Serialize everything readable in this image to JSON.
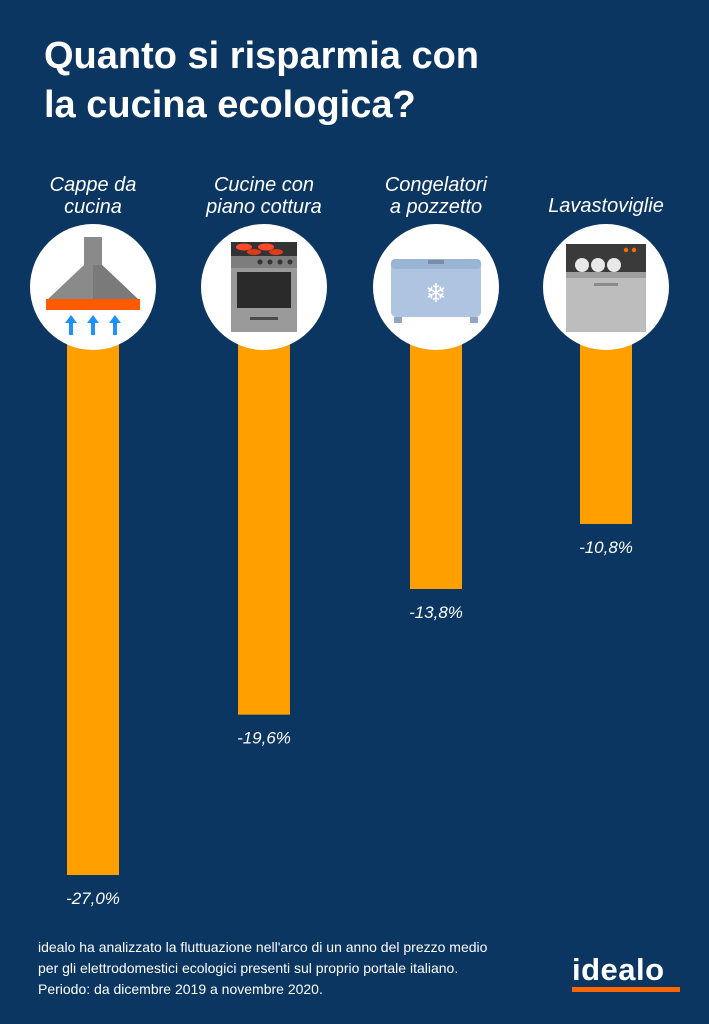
{
  "title_lines": [
    "Quanto si risparmia con",
    "la cucina ecologica?"
  ],
  "colors": {
    "background": "#0b3661",
    "bar": "#ffa000",
    "text": "#ffffff",
    "icon_circle": "#ffffff",
    "brand_accent": "#ff6600"
  },
  "chart_data": {
    "type": "bar",
    "orientation": "vertical-downward",
    "categories": [
      {
        "lines": [
          "Cappe da",
          "cucina"
        ],
        "icon": "range-hood-icon"
      },
      {
        "lines": [
          "Cucine con",
          "piano cottura"
        ],
        "icon": "stove-oven-icon"
      },
      {
        "lines": [
          "Congelatori",
          "a pozzetto"
        ],
        "icon": "chest-freezer-icon"
      },
      {
        "lines": [
          "Lavastoviglie"
        ],
        "icon": "dishwasher-icon"
      }
    ],
    "values": [
      -27.0,
      -19.6,
      -13.8,
      -10.8
    ],
    "value_labels": [
      "-27,0%",
      "-19,6%",
      "-13,8%",
      "-10,8%"
    ],
    "unit": "%",
    "ylim": [
      -27.0,
      0
    ],
    "grid": false,
    "legend": "none"
  },
  "footnote_lines": [
    "idealo ha analizzato la fluttuazione nell'arco di un anno del prezzo medio",
    "per gli elettrodomestici ecologici presenti sul proprio portale italiano.",
    "Periodo: da dicembre 2019 a novembre 2020."
  ],
  "brand": {
    "logo_text": "idealo"
  }
}
